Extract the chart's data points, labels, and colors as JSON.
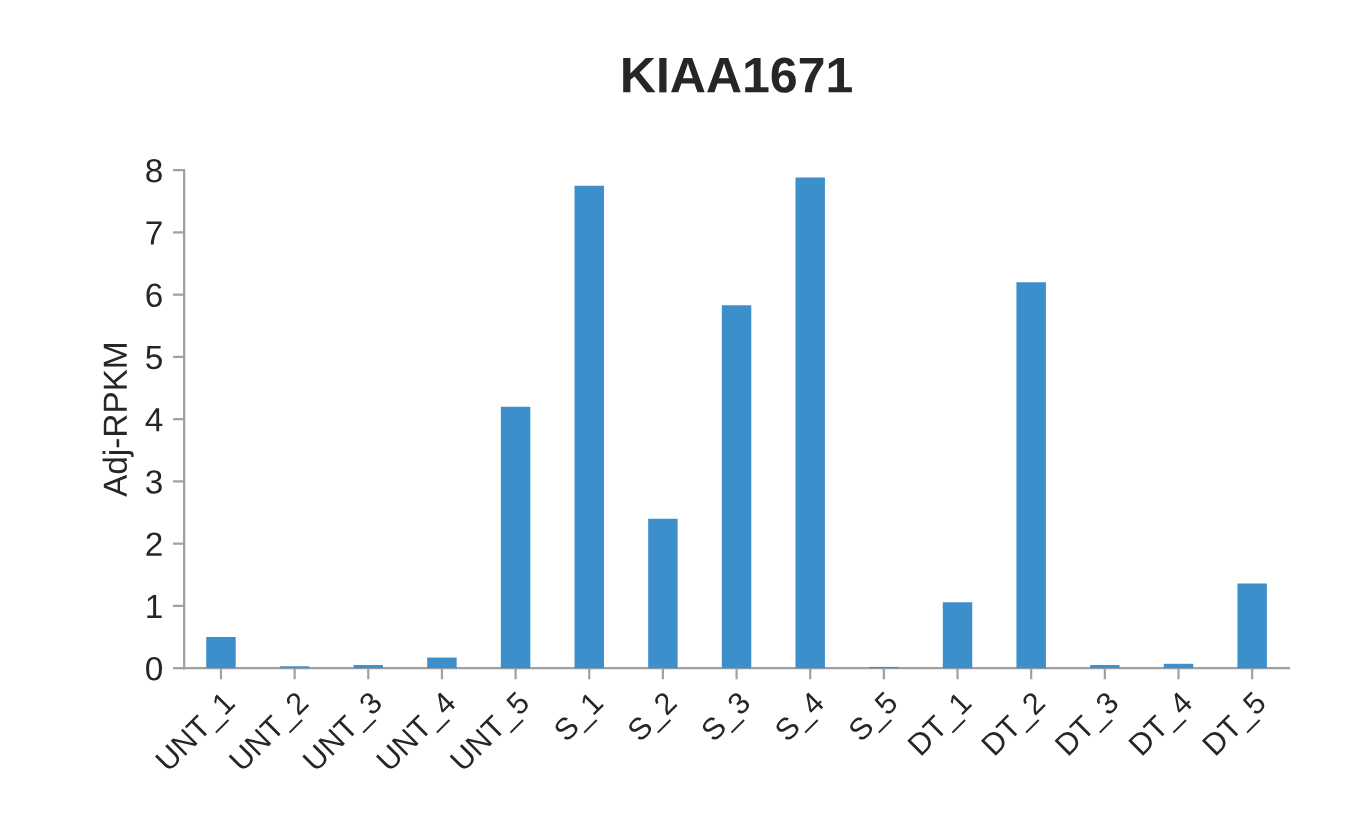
{
  "chart_data": {
    "type": "bar",
    "title": "KIAA1671",
    "ylabel": "Adj-RPKM",
    "categories": [
      "UNT_1",
      "UNT_2",
      "UNT_3",
      "UNT_4",
      "UNT_5",
      "S_1",
      "S_2",
      "S_3",
      "S_4",
      "S_5",
      "DT_1",
      "DT_2",
      "DT_3",
      "DT_4",
      "DT_5"
    ],
    "values": [
      0.5,
      0.03,
      0.05,
      0.17,
      4.2,
      7.75,
      2.4,
      5.83,
      7.88,
      0.02,
      1.06,
      6.2,
      0.05,
      0.07,
      1.36
    ],
    "color": "#3d8fcb",
    "ylim": [
      0,
      8
    ],
    "yticks": [
      0,
      1,
      2,
      3,
      4,
      5,
      6,
      7,
      8
    ],
    "grid": false
  }
}
